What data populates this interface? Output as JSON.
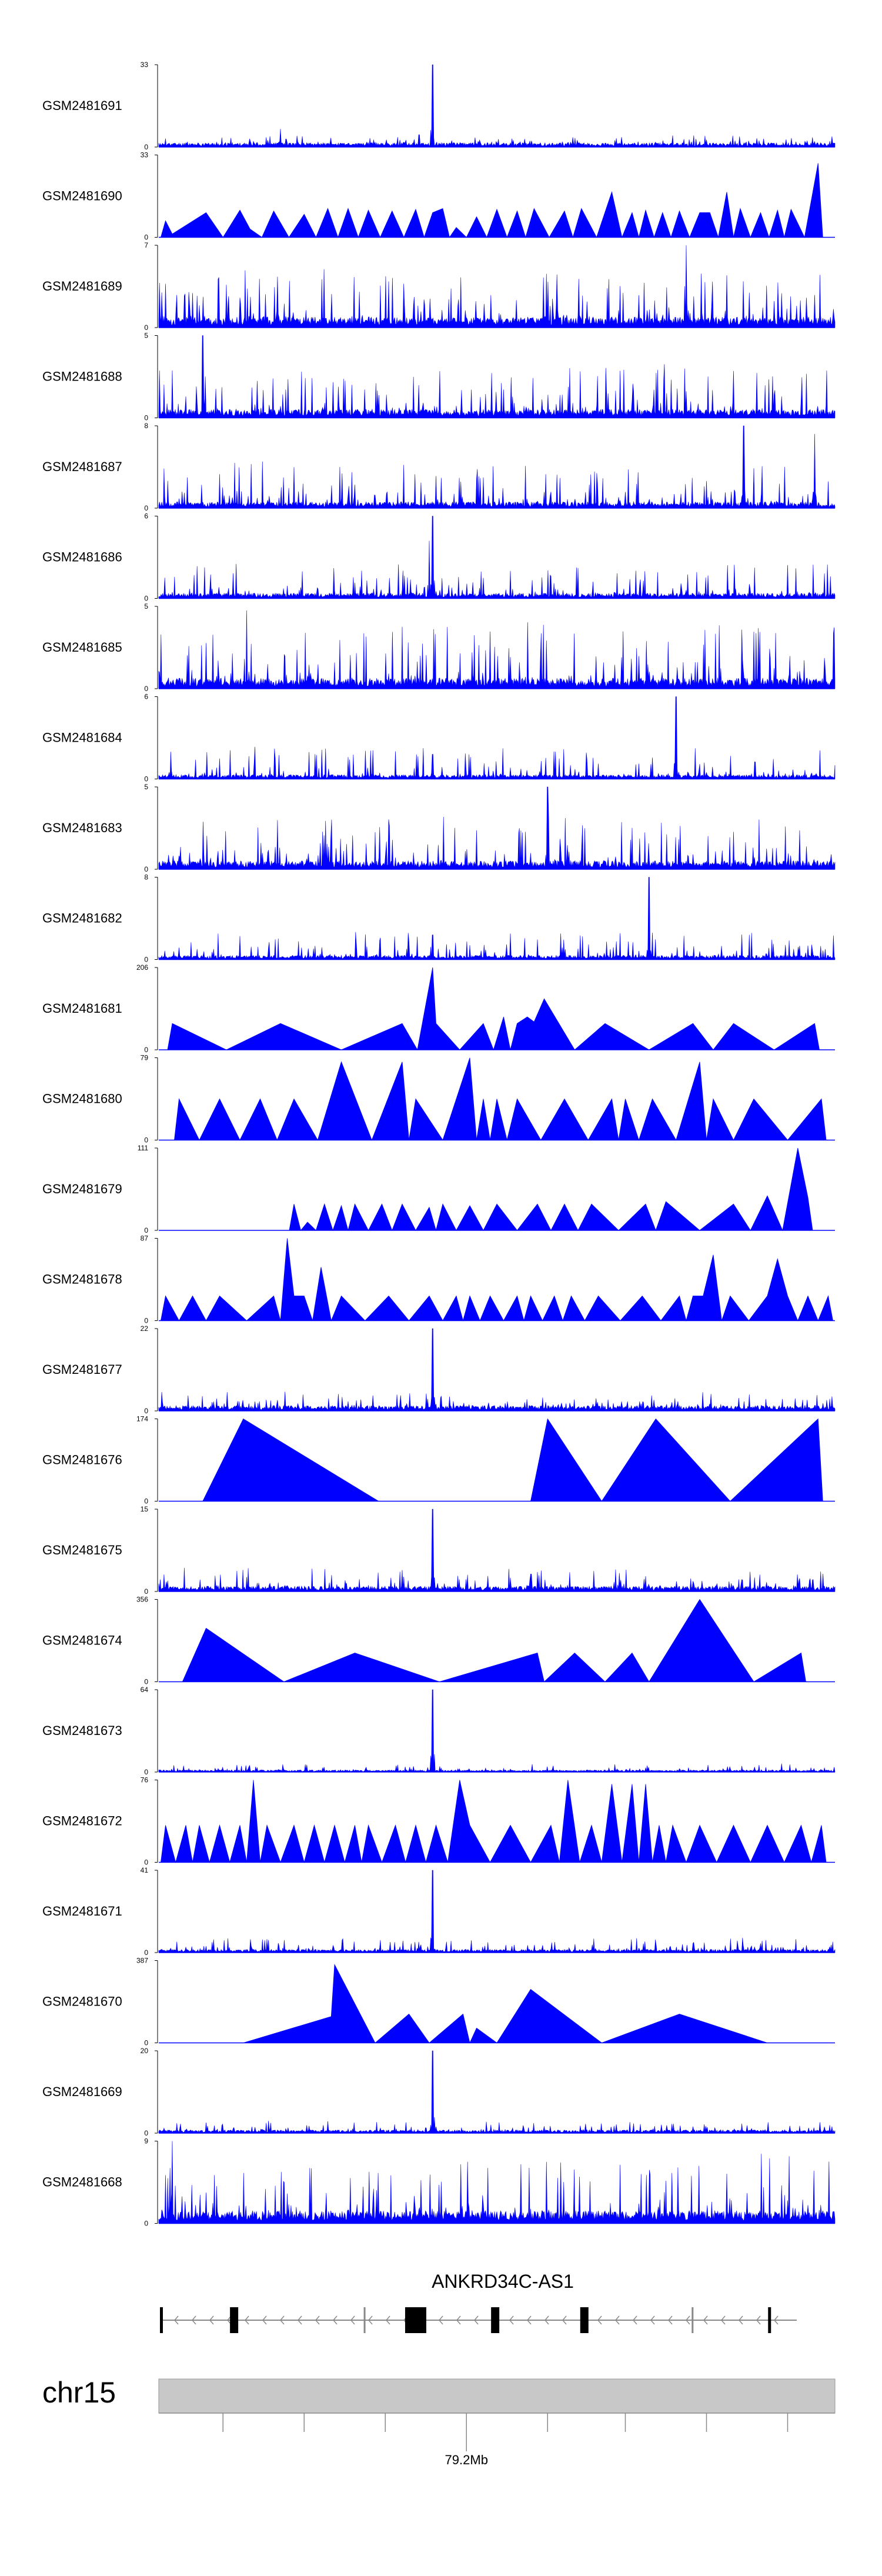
{
  "chart_data": {
    "type": "area",
    "title": "",
    "color": "#0000ff",
    "tracks": [
      {
        "name": "GSM2481691",
        "ymax": 33,
        "ymin": 0,
        "style": "dense",
        "seed": 11,
        "baseline": 0.04,
        "noise": 0.1,
        "peaks": [
          {
            "x": 0.405,
            "h": 1.0
          },
          {
            "x": 0.76,
            "h": 0.14
          },
          {
            "x": 0.18,
            "h": 0.22
          },
          {
            "x": 0.385,
            "h": 0.15
          }
        ]
      },
      {
        "name": "GSM2481690",
        "ymax": 33,
        "ymin": 0,
        "style": "tri",
        "seed": 12,
        "peaks": [
          [
            0.01,
            0.2
          ],
          [
            0.02,
            0.04
          ],
          [
            0.07,
            0.3
          ],
          [
            0.12,
            0.33
          ],
          [
            0.135,
            0.1
          ],
          [
            0.17,
            0.32
          ],
          [
            0.215,
            0.28
          ],
          [
            0.25,
            0.35
          ],
          [
            0.28,
            0.35
          ],
          [
            0.31,
            0.33
          ],
          [
            0.345,
            0.32
          ],
          [
            0.38,
            0.34
          ],
          [
            0.405,
            0.3
          ],
          [
            0.42,
            0.35
          ],
          [
            0.44,
            0.12
          ],
          [
            0.47,
            0.25
          ],
          [
            0.5,
            0.34
          ],
          [
            0.53,
            0.32
          ],
          [
            0.555,
            0.35
          ],
          [
            0.6,
            0.32
          ],
          [
            0.625,
            0.35
          ],
          [
            0.67,
            0.55
          ],
          [
            0.7,
            0.3
          ],
          [
            0.72,
            0.33
          ],
          [
            0.745,
            0.3
          ],
          [
            0.77,
            0.32
          ],
          [
            0.8,
            0.3
          ],
          [
            0.815,
            0.3
          ],
          [
            0.84,
            0.55
          ],
          [
            0.86,
            0.35
          ],
          [
            0.89,
            0.3
          ],
          [
            0.915,
            0.33
          ],
          [
            0.935,
            0.34
          ],
          [
            0.975,
            0.9
          ]
        ]
      },
      {
        "name": "GSM2481689",
        "ymax": 7,
        "ymin": 0,
        "style": "dense",
        "seed": 13,
        "baseline": 0.1,
        "noise": 0.6,
        "peaks": [
          {
            "x": 0.78,
            "h": 1.0
          }
        ]
      },
      {
        "name": "GSM2481688",
        "ymax": 5,
        "ymin": 0,
        "style": "dense",
        "seed": 14,
        "baseline": 0.08,
        "noise": 0.55,
        "peaks": [
          {
            "x": 0.065,
            "h": 1.0
          }
        ]
      },
      {
        "name": "GSM2481687",
        "ymax": 8,
        "ymin": 0,
        "style": "dense",
        "seed": 15,
        "baseline": 0.06,
        "noise": 0.5,
        "peaks": [
          {
            "x": 0.865,
            "h": 1.0
          },
          {
            "x": 0.97,
            "h": 0.9
          }
        ]
      },
      {
        "name": "GSM2481686",
        "ymax": 6,
        "ymin": 0,
        "style": "dense",
        "seed": 16,
        "baseline": 0.05,
        "noise": 0.4,
        "peaks": [
          {
            "x": 0.405,
            "h": 1.0
          },
          {
            "x": 0.4,
            "h": 0.7
          }
        ]
      },
      {
        "name": "GSM2481685",
        "ymax": 5,
        "ymin": 0,
        "style": "dense",
        "seed": 17,
        "baseline": 0.1,
        "noise": 0.7,
        "peaks": [
          {
            "x": 0.13,
            "h": 0.95
          }
        ]
      },
      {
        "name": "GSM2481684",
        "ymax": 6,
        "ymin": 0,
        "style": "dense",
        "seed": 18,
        "baseline": 0.04,
        "noise": 0.35,
        "peaks": [
          {
            "x": 0.765,
            "h": 1.0
          },
          {
            "x": 0.405,
            "h": 0.3
          }
        ]
      },
      {
        "name": "GSM2481683",
        "ymax": 5,
        "ymin": 0,
        "style": "dense",
        "seed": 19,
        "baseline": 0.08,
        "noise": 0.55,
        "peaks": [
          {
            "x": 0.575,
            "h": 1.0
          }
        ]
      },
      {
        "name": "GSM2481682",
        "ymax": 8,
        "ymin": 0,
        "style": "dense",
        "seed": 20,
        "baseline": 0.04,
        "noise": 0.3,
        "peaks": [
          {
            "x": 0.725,
            "h": 1.0
          },
          {
            "x": 0.405,
            "h": 0.3
          }
        ]
      },
      {
        "name": "GSM2481681",
        "ymax": 206,
        "ymin": 0,
        "style": "tri",
        "seed": 21,
        "peaks": [
          [
            0.02,
            0.32
          ],
          [
            0.18,
            0.32
          ],
          [
            0.36,
            0.32
          ],
          [
            0.405,
            1.0
          ],
          [
            0.41,
            0.32
          ],
          [
            0.48,
            0.32
          ],
          [
            0.51,
            0.4
          ],
          [
            0.53,
            0.32
          ],
          [
            0.545,
            0.4
          ],
          [
            0.555,
            0.34
          ],
          [
            0.57,
            0.62
          ],
          [
            0.66,
            0.32
          ],
          [
            0.79,
            0.32
          ],
          [
            0.85,
            0.32
          ],
          [
            0.97,
            0.32
          ]
        ]
      },
      {
        "name": "GSM2481680",
        "ymax": 79,
        "ymin": 0,
        "style": "tri",
        "seed": 22,
        "peaks": [
          [
            0.03,
            0.5
          ],
          [
            0.09,
            0.5
          ],
          [
            0.15,
            0.5
          ],
          [
            0.2,
            0.5
          ],
          [
            0.27,
            0.95
          ],
          [
            0.36,
            0.95
          ],
          [
            0.38,
            0.5
          ],
          [
            0.46,
            1.0
          ],
          [
            0.48,
            0.5
          ],
          [
            0.5,
            0.5
          ],
          [
            0.53,
            0.5
          ],
          [
            0.6,
            0.5
          ],
          [
            0.67,
            0.5
          ],
          [
            0.69,
            0.5
          ],
          [
            0.73,
            0.5
          ],
          [
            0.8,
            0.95
          ],
          [
            0.82,
            0.5
          ],
          [
            0.88,
            0.5
          ],
          [
            0.98,
            0.5
          ]
        ]
      },
      {
        "name": "GSM2481679",
        "ymax": 111,
        "ymin": 0,
        "style": "tri",
        "seed": 23,
        "peaks": [
          [
            0.2,
            0.32
          ],
          [
            0.22,
            0.1
          ],
          [
            0.245,
            0.32
          ],
          [
            0.27,
            0.3
          ],
          [
            0.29,
            0.32
          ],
          [
            0.33,
            0.32
          ],
          [
            0.36,
            0.32
          ],
          [
            0.4,
            0.28
          ],
          [
            0.42,
            0.32
          ],
          [
            0.46,
            0.3
          ],
          [
            0.5,
            0.32
          ],
          [
            0.56,
            0.32
          ],
          [
            0.6,
            0.32
          ],
          [
            0.64,
            0.32
          ],
          [
            0.72,
            0.32
          ],
          [
            0.75,
            0.35
          ],
          [
            0.85,
            0.32
          ],
          [
            0.9,
            0.42
          ],
          [
            0.945,
            1.0
          ],
          [
            0.96,
            0.4
          ]
        ]
      },
      {
        "name": "GSM2481678",
        "ymax": 87,
        "ymin": 0,
        "style": "tri",
        "seed": 24,
        "peaks": [
          [
            0.01,
            0.3
          ],
          [
            0.05,
            0.3
          ],
          [
            0.09,
            0.3
          ],
          [
            0.17,
            0.3
          ],
          [
            0.19,
            1.0
          ],
          [
            0.2,
            0.3
          ],
          [
            0.215,
            0.3
          ],
          [
            0.24,
            0.65
          ],
          [
            0.27,
            0.3
          ],
          [
            0.34,
            0.3
          ],
          [
            0.4,
            0.3
          ],
          [
            0.44,
            0.3
          ],
          [
            0.46,
            0.3
          ],
          [
            0.49,
            0.3
          ],
          [
            0.53,
            0.3
          ],
          [
            0.55,
            0.3
          ],
          [
            0.585,
            0.3
          ],
          [
            0.61,
            0.3
          ],
          [
            0.65,
            0.3
          ],
          [
            0.715,
            0.3
          ],
          [
            0.77,
            0.3
          ],
          [
            0.79,
            0.3
          ],
          [
            0.805,
            0.3
          ],
          [
            0.82,
            0.8
          ],
          [
            0.845,
            0.3
          ],
          [
            0.9,
            0.3
          ],
          [
            0.915,
            0.75
          ],
          [
            0.93,
            0.3
          ],
          [
            0.96,
            0.3
          ],
          [
            0.99,
            0.3
          ]
        ]
      },
      {
        "name": "GSM2481677",
        "ymax": 22,
        "ymin": 0,
        "style": "dense",
        "seed": 25,
        "baseline": 0.05,
        "noise": 0.18,
        "peaks": [
          {
            "x": 0.405,
            "h": 1.0
          }
        ]
      },
      {
        "name": "GSM2481676",
        "ymax": 174,
        "ymin": 0,
        "style": "tri",
        "seed": 26,
        "peaks": [
          [
            0.065,
            0.0
          ],
          [
            0.125,
            1.0
          ],
          [
            0.325,
            0.0
          ],
          [
            0.515,
            0.0
          ],
          [
            0.55,
            0.0
          ],
          [
            0.575,
            1.0
          ],
          [
            0.655,
            0.0
          ],
          [
            0.735,
            1.0
          ],
          [
            0.845,
            0.0
          ],
          [
            0.975,
            1.0
          ]
        ]
      },
      {
        "name": "GSM2481675",
        "ymax": 15,
        "ymin": 0,
        "style": "dense",
        "seed": 27,
        "baseline": 0.05,
        "noise": 0.25,
        "peaks": [
          {
            "x": 0.405,
            "h": 1.0
          }
        ]
      },
      {
        "name": "GSM2481674",
        "ymax": 356,
        "ymin": 0,
        "style": "tri",
        "seed": 28,
        "peaks": [
          [
            0.035,
            0.0
          ],
          [
            0.07,
            0.65
          ],
          [
            0.185,
            0.0
          ],
          [
            0.29,
            0.35
          ],
          [
            0.415,
            0.0
          ],
          [
            0.56,
            0.35
          ],
          [
            0.57,
            0.0
          ],
          [
            0.615,
            0.35
          ],
          [
            0.66,
            0.0
          ],
          [
            0.7,
            0.35
          ],
          [
            0.725,
            0.0
          ],
          [
            0.8,
            1.0
          ],
          [
            0.88,
            0.0
          ],
          [
            0.95,
            0.35
          ]
        ]
      },
      {
        "name": "GSM2481673",
        "ymax": 64,
        "ymin": 0,
        "style": "dense",
        "seed": 29,
        "baseline": 0.02,
        "noise": 0.08,
        "peaks": [
          {
            "x": 0.405,
            "h": 1.0
          }
        ]
      },
      {
        "name": "GSM2481672",
        "ymax": 76,
        "ymin": 0,
        "style": "tri",
        "seed": 30,
        "peaks": [
          [
            0.01,
            0.45
          ],
          [
            0.04,
            0.45
          ],
          [
            0.06,
            0.45
          ],
          [
            0.09,
            0.45
          ],
          [
            0.12,
            0.45
          ],
          [
            0.14,
            1.0
          ],
          [
            0.16,
            0.45
          ],
          [
            0.2,
            0.45
          ],
          [
            0.23,
            0.45
          ],
          [
            0.26,
            0.45
          ],
          [
            0.29,
            0.45
          ],
          [
            0.31,
            0.45
          ],
          [
            0.35,
            0.45
          ],
          [
            0.38,
            0.45
          ],
          [
            0.41,
            0.45
          ],
          [
            0.445,
            1.0
          ],
          [
            0.46,
            0.45
          ],
          [
            0.52,
            0.45
          ],
          [
            0.58,
            0.45
          ],
          [
            0.605,
            1.0
          ],
          [
            0.64,
            0.45
          ],
          [
            0.67,
            0.95
          ],
          [
            0.7,
            0.95
          ],
          [
            0.72,
            0.95
          ],
          [
            0.74,
            0.45
          ],
          [
            0.76,
            0.45
          ],
          [
            0.8,
            0.45
          ],
          [
            0.85,
            0.45
          ],
          [
            0.9,
            0.45
          ],
          [
            0.95,
            0.45
          ],
          [
            0.98,
            0.45
          ]
        ]
      },
      {
        "name": "GSM2481671",
        "ymax": 41,
        "ymin": 0,
        "style": "dense",
        "seed": 31,
        "baseline": 0.03,
        "noise": 0.15,
        "peaks": [
          {
            "x": 0.405,
            "h": 1.0
          }
        ]
      },
      {
        "name": "GSM2481670",
        "ymax": 387,
        "ymin": 0,
        "style": "tri",
        "seed": 32,
        "peaks": [
          [
            0.125,
            0.0
          ],
          [
            0.255,
            0.32
          ],
          [
            0.26,
            0.95
          ],
          [
            0.32,
            0.0
          ],
          [
            0.37,
            0.35
          ],
          [
            0.4,
            0.0
          ],
          [
            0.45,
            0.35
          ],
          [
            0.47,
            0.18
          ],
          [
            0.5,
            0.0
          ],
          [
            0.55,
            0.65
          ],
          [
            0.655,
            0.0
          ],
          [
            0.77,
            0.35
          ],
          [
            0.9,
            0.0
          ]
        ]
      },
      {
        "name": "GSM2481669",
        "ymax": 20,
        "ymin": 0,
        "style": "dense",
        "seed": 33,
        "baseline": 0.03,
        "noise": 0.12,
        "peaks": [
          {
            "x": 0.405,
            "h": 1.0
          }
        ]
      },
      {
        "name": "GSM2481668",
        "ymax": 9,
        "ymin": 0,
        "style": "dense",
        "seed": 34,
        "baseline": 0.12,
        "noise": 0.7,
        "peaks": [
          {
            "x": 0.02,
            "h": 1.0
          }
        ]
      }
    ],
    "gene": {
      "name": "ANKRD34C-AS1",
      "strand": "-",
      "exons": [
        0.0,
        0.11,
        0.385,
        0.52,
        0.66,
        0.955
      ],
      "big_exon": 0.385
    },
    "ideogram": {
      "chromosome": "chr15",
      "position_label": "79.2Mb",
      "position_frac": 0.455,
      "tick_fracs": [
        0.095,
        0.215,
        0.335,
        0.455,
        0.575,
        0.69,
        0.81,
        0.93
      ]
    }
  }
}
